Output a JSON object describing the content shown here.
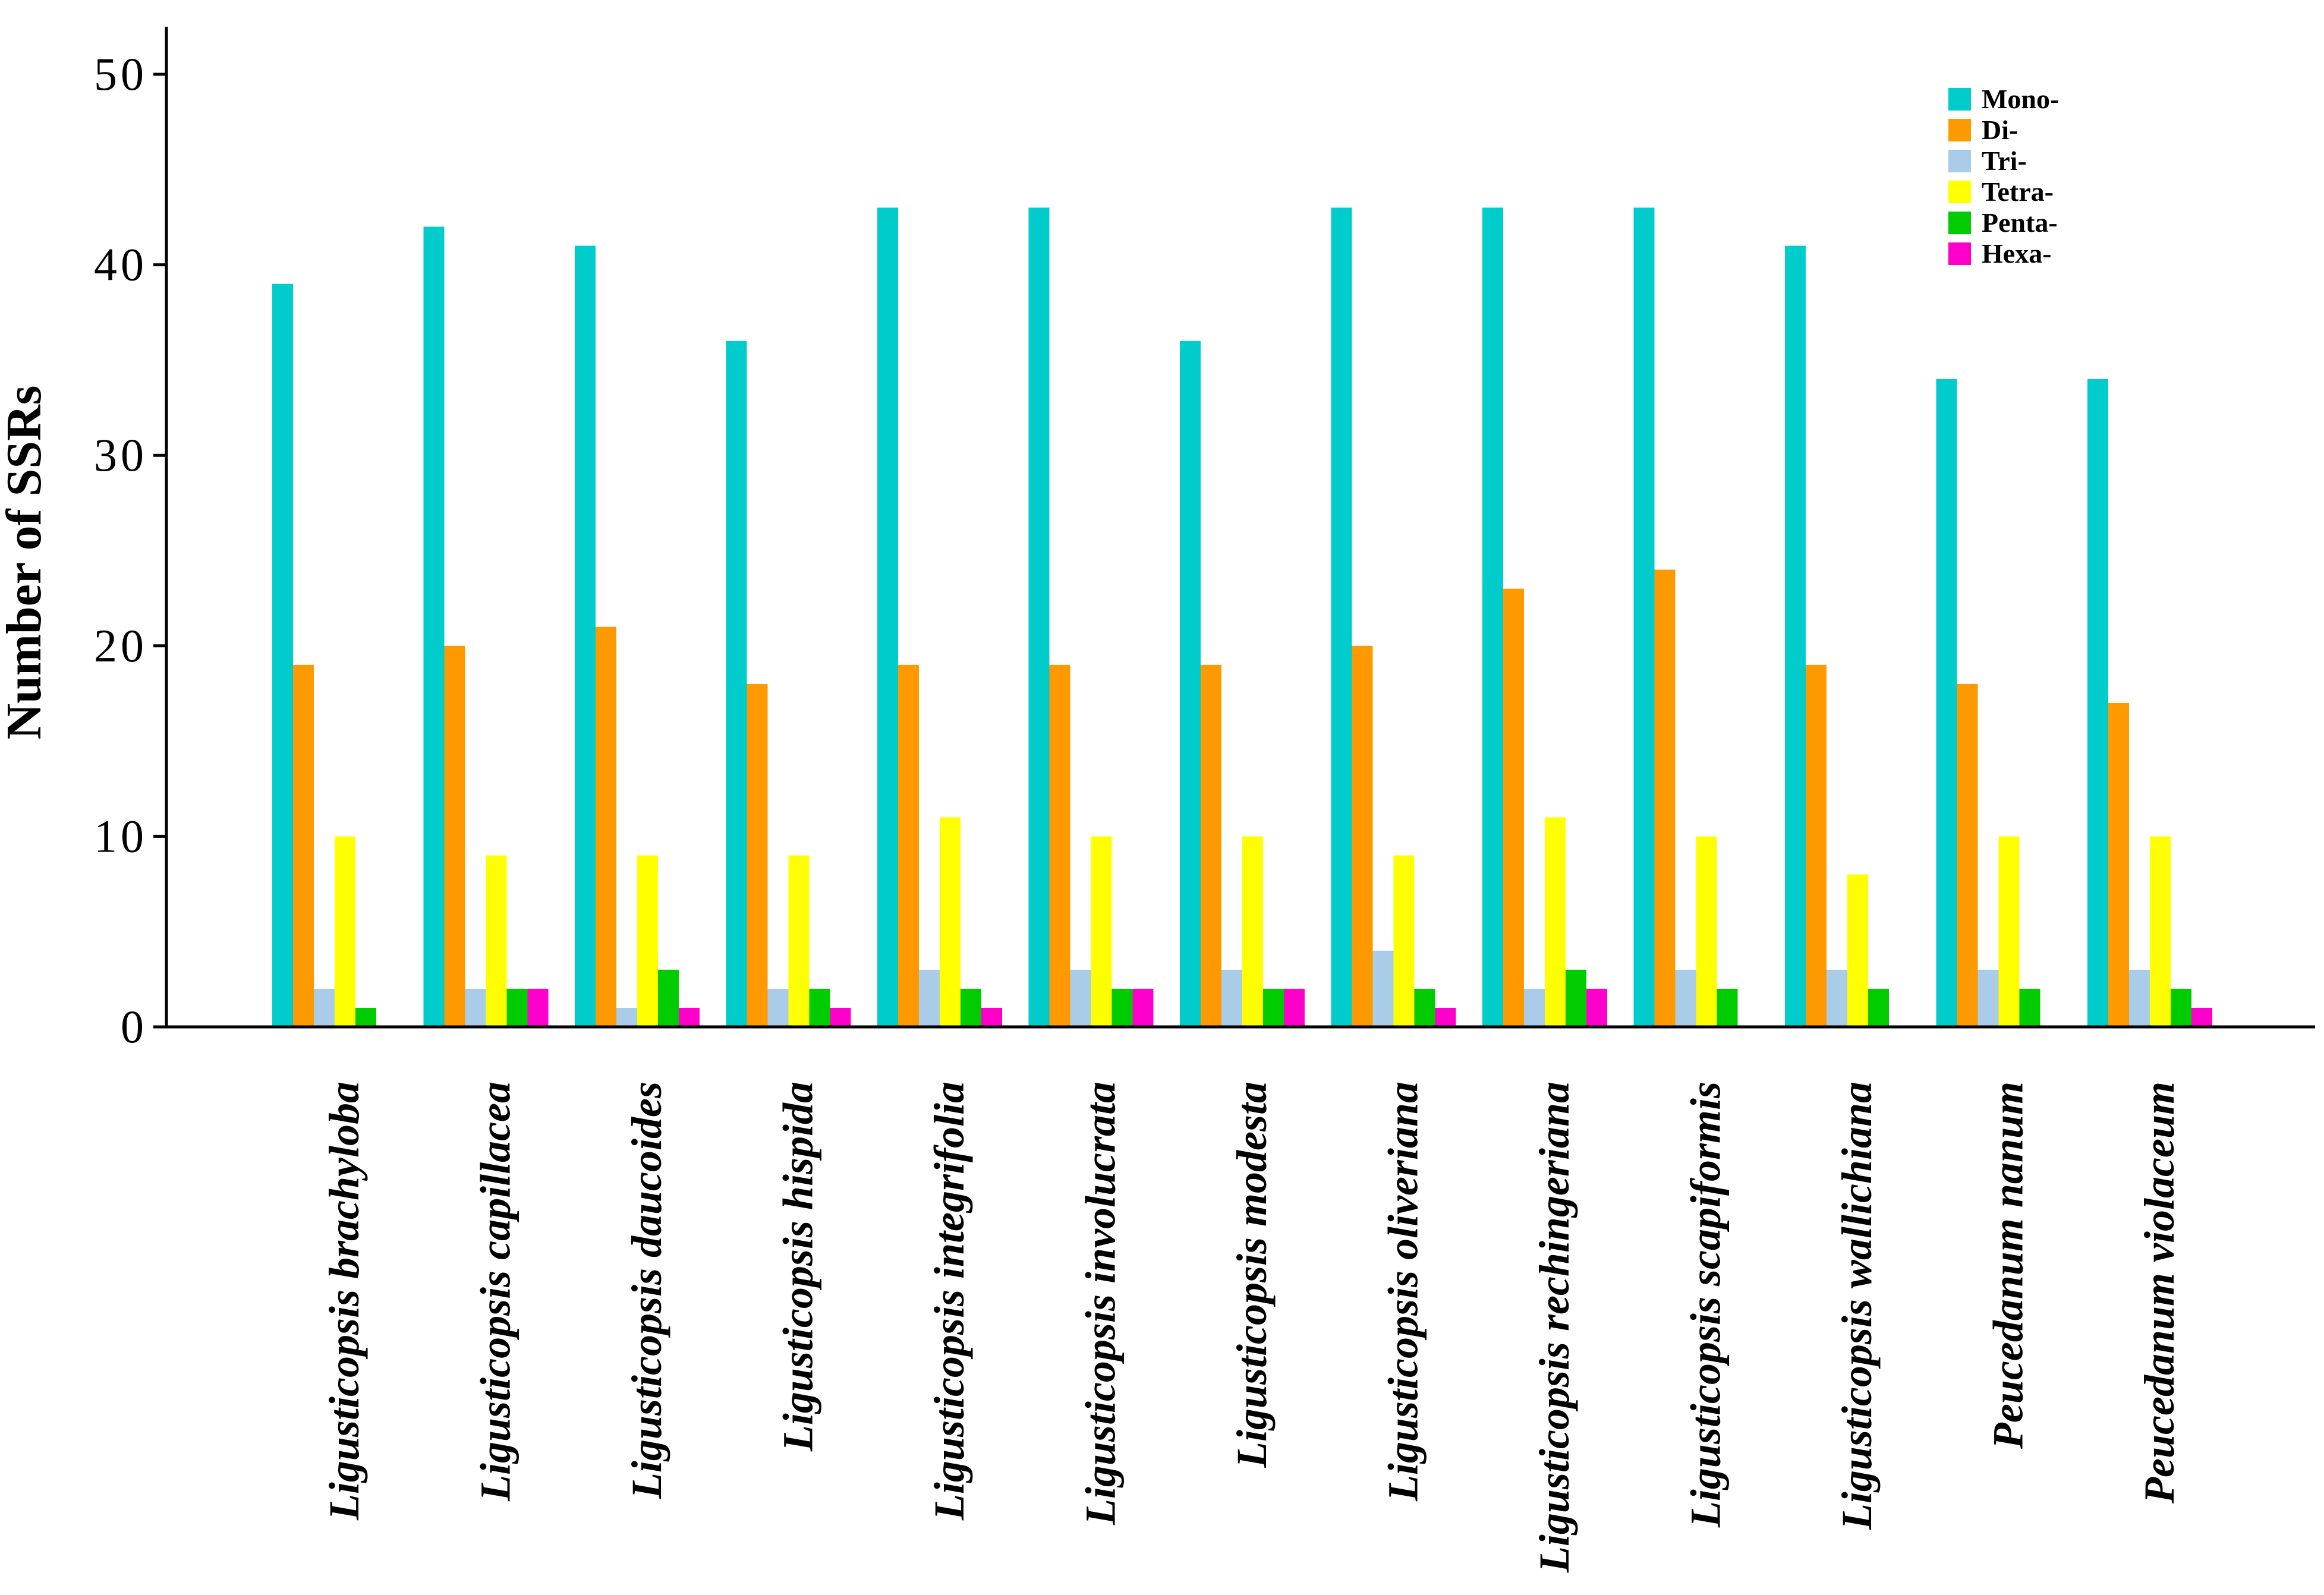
{
  "chart_data": {
    "type": "bar",
    "title": "",
    "xlabel": "",
    "ylabel": "Number of SSRs",
    "ylim": [
      0,
      50
    ],
    "yticks": [
      0,
      10,
      20,
      30,
      40,
      50
    ],
    "legend_position": "top-right",
    "categories": [
      "Ligusticopsis brachyloba",
      "Ligusticopsis capillacea",
      "Ligusticopsis daucoides",
      "Ligusticopsis hispida",
      "Ligusticopsis integrifolia",
      "Ligusticopsis involucrata",
      "Ligusticopsis modesta",
      "Ligusticopsis oliveriana",
      "Ligusticopsis rechingeriana",
      "Ligusticopsis scapiformis",
      "Ligusticopsis wallichiana",
      "Peucedanum nanum",
      "Peucedanum violaceum"
    ],
    "series": [
      {
        "name": "Mono-",
        "color": "#00CCCC",
        "values": [
          39,
          42,
          41,
          36,
          43,
          43,
          36,
          43,
          43,
          43,
          41,
          34,
          34
        ]
      },
      {
        "name": "Di-",
        "color": "#FF9900",
        "values": [
          19,
          20,
          21,
          18,
          19,
          19,
          19,
          20,
          23,
          24,
          19,
          18,
          17
        ]
      },
      {
        "name": "Tri-",
        "color": "#A9CCE8",
        "values": [
          2,
          2,
          1,
          2,
          3,
          3,
          3,
          4,
          2,
          3,
          3,
          3,
          3
        ]
      },
      {
        "name": "Tetra-",
        "color": "#FFFF00",
        "values": [
          10,
          9,
          9,
          9,
          11,
          10,
          10,
          9,
          11,
          10,
          8,
          10,
          10
        ]
      },
      {
        "name": "Penta-",
        "color": "#00CC00",
        "values": [
          1,
          2,
          3,
          2,
          2,
          2,
          2,
          2,
          3,
          2,
          2,
          2,
          2
        ]
      },
      {
        "name": "Hexa-",
        "color": "#FF00CC",
        "values": [
          0,
          2,
          1,
          1,
          1,
          2,
          2,
          1,
          2,
          0,
          0,
          0,
          1
        ]
      }
    ]
  }
}
